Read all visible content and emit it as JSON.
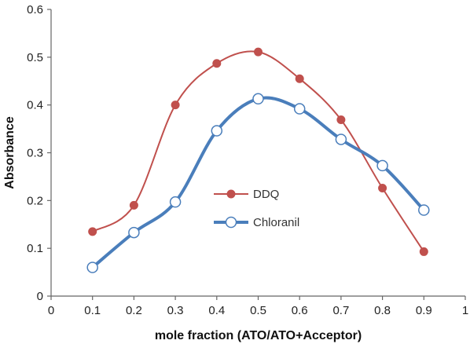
{
  "chart_data": {
    "type": "line",
    "title": "",
    "xlabel": "mole fraction (ATO/ATO+Acceptor)",
    "ylabel": "Absorbance",
    "xlim": [
      0,
      1
    ],
    "ylim": [
      0,
      0.6
    ],
    "x_ticks": [
      "0",
      "0.1",
      "0.2",
      "0.3",
      "0.4",
      "0.5",
      "0.6",
      "0.7",
      "0.8",
      "0.9",
      "1"
    ],
    "y_ticks": [
      "0",
      "0.1",
      "0.2",
      "0.3",
      "0.4",
      "0.5",
      "0.6"
    ],
    "grid": false,
    "legend_position": "middle-center",
    "series": [
      {
        "name": "DDQ",
        "color": "#c0504d",
        "marker": "filled-circle",
        "x": [
          0.1,
          0.2,
          0.3,
          0.4,
          0.5,
          0.6,
          0.7,
          0.8,
          0.9
        ],
        "y": [
          0.135,
          0.19,
          0.4,
          0.487,
          0.511,
          0.455,
          0.369,
          0.226,
          0.093
        ]
      },
      {
        "name": "Chloranil",
        "color": "#4a7ebb",
        "marker": "open-circle",
        "x": [
          0.1,
          0.2,
          0.3,
          0.4,
          0.5,
          0.6,
          0.7,
          0.8,
          0.9
        ],
        "y": [
          0.06,
          0.133,
          0.197,
          0.346,
          0.413,
          0.392,
          0.328,
          0.273,
          0.18
        ]
      }
    ]
  }
}
